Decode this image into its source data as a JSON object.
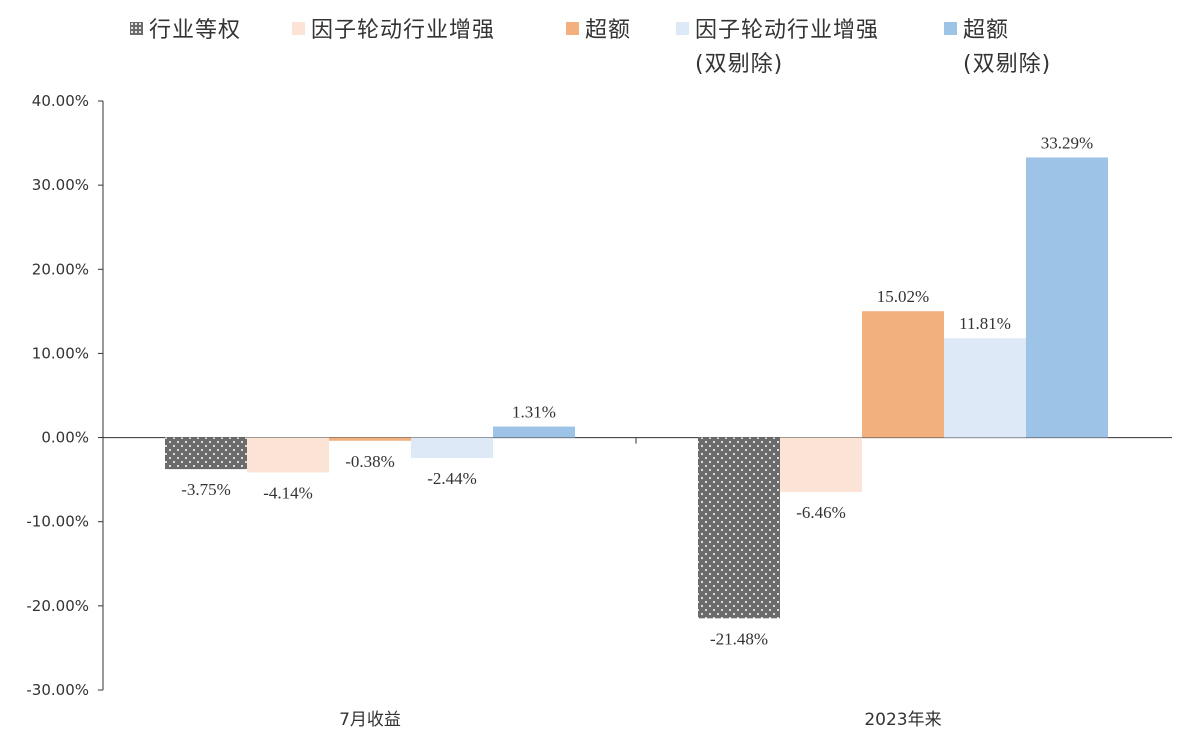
{
  "chart_data": {
    "type": "bar",
    "categories": [
      "7月收益",
      "2023年来"
    ],
    "series": [
      {
        "name": "行业等权",
        "values": [
          -3.75,
          -21.48
        ],
        "labels": [
          "-3.75%",
          "-21.48%"
        ],
        "color": "#6b6b6b",
        "pattern": "dotted"
      },
      {
        "name": "因子轮动行业增强",
        "values": [
          -4.14,
          -6.46
        ],
        "labels": [
          "-4.14%",
          "-6.46%"
        ],
        "color": "#fbe3d6"
      },
      {
        "name": "超额",
        "values": [
          -0.38,
          15.02
        ],
        "labels": [
          "-0.38%",
          "15.02%"
        ],
        "color": "#f2b07f"
      },
      {
        "name": "因子轮动行业增强\n(双剔除)",
        "values": [
          -2.44,
          11.81
        ],
        "labels": [
          "-2.44%",
          "11.81%"
        ],
        "color": "#dde9f6"
      },
      {
        "name": "超额\n(双剔除)",
        "values": [
          1.31,
          33.29
        ],
        "labels": [
          "1.31%",
          "33.29%"
        ],
        "color": "#9dc3e6"
      }
    ],
    "ylim": [
      -30,
      40
    ],
    "yticks": [
      40,
      30,
      20,
      10,
      0,
      -10,
      -20,
      -30
    ],
    "ytick_labels": [
      "40.00%",
      "30.00%",
      "20.00%",
      "10.00%",
      "0.00%",
      "-10.00%",
      "-20.00%",
      "-30.00%"
    ],
    "legend_position": "top",
    "grid": false
  }
}
